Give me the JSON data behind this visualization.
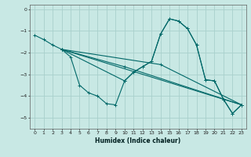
{
  "xlabel": "Humidex (Indice chaleur)",
  "bg_color": "#c8e8e4",
  "line_color": "#006868",
  "grid_color": "#a8d0cc",
  "xlim": [
    -0.5,
    23.5
  ],
  "ylim": [
    -5.5,
    0.2
  ],
  "xticks": [
    0,
    1,
    2,
    3,
    4,
    5,
    6,
    7,
    8,
    9,
    10,
    11,
    12,
    13,
    14,
    15,
    16,
    17,
    18,
    19,
    20,
    21,
    22,
    23
  ],
  "yticks": [
    0,
    -1,
    -2,
    -3,
    -4,
    -5
  ],
  "series": [
    {
      "x": [
        0,
        1,
        2,
        3,
        4,
        5,
        6,
        7,
        8,
        9,
        10,
        11,
        12,
        13,
        14,
        15,
        16,
        17,
        18,
        19,
        20,
        21,
        22,
        23
      ],
      "y": [
        -1.2,
        -1.4,
        -1.65,
        -1.85,
        -2.2,
        -3.5,
        -3.85,
        -4.0,
        -4.35,
        -4.4,
        -3.3,
        -2.9,
        -2.65,
        -2.4,
        -1.15,
        -0.45,
        -0.55,
        -0.9,
        -1.65,
        -3.25,
        -3.3,
        -4.15,
        -4.8,
        -4.4
      ]
    },
    {
      "x": [
        3,
        10,
        11,
        12,
        13,
        14,
        15,
        16,
        17,
        18,
        19,
        20,
        21,
        22,
        23
      ],
      "y": [
        -1.85,
        -3.3,
        -2.9,
        -2.65,
        -2.4,
        -1.15,
        -0.45,
        -0.55,
        -0.9,
        -1.65,
        -3.25,
        -3.3,
        -4.15,
        -4.8,
        -4.4
      ]
    },
    {
      "x": [
        3,
        23
      ],
      "y": [
        -1.85,
        -4.4
      ]
    },
    {
      "x": [
        3,
        10,
        23
      ],
      "y": [
        -1.85,
        -2.65,
        -4.4
      ]
    },
    {
      "x": [
        3,
        14,
        23
      ],
      "y": [
        -1.85,
        -2.55,
        -4.4
      ]
    }
  ]
}
